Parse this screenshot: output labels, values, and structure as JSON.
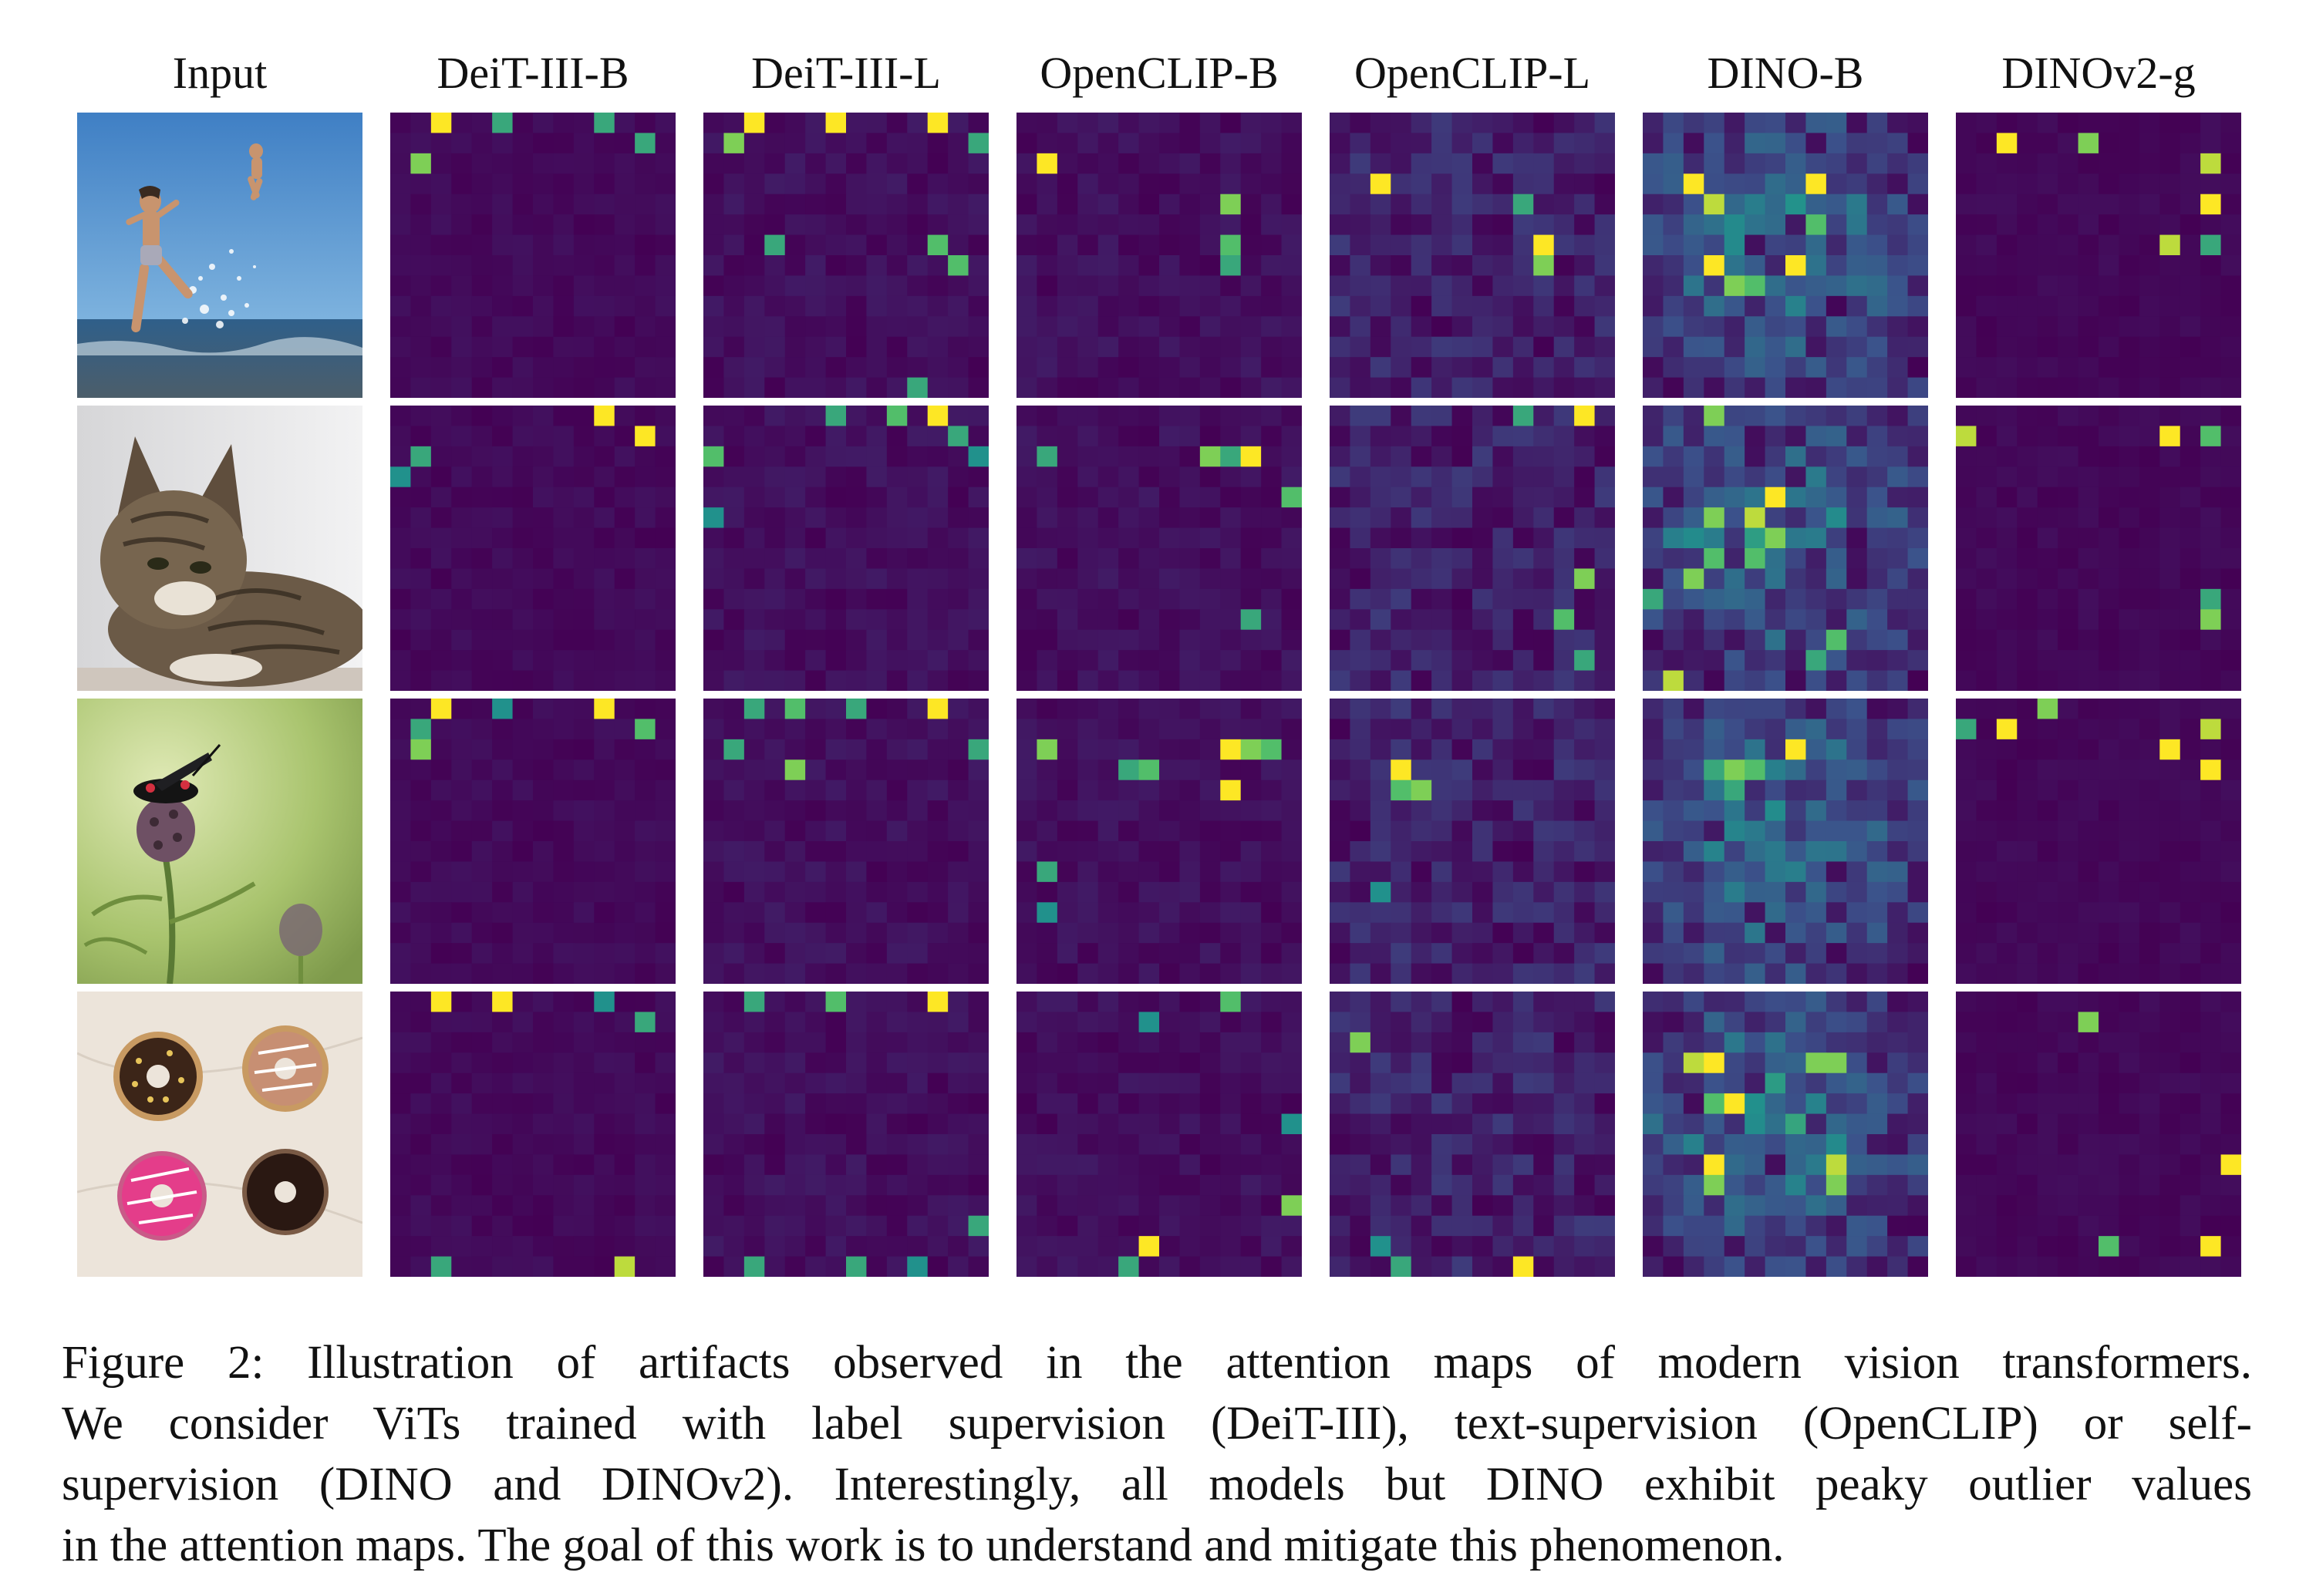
{
  "figure": {
    "columns": [
      "Input",
      "DeiT-III-B",
      "DeiT-III-L",
      "OpenCLIP-B",
      "OpenCLIP-L",
      "DINO-B",
      "DINOv2-g"
    ],
    "rows": [
      "beach-kids",
      "cat",
      "insect-on-flower",
      "donuts"
    ],
    "colormap": [
      "#440154",
      "#3b528b",
      "#21918c",
      "#5ec962",
      "#fde725"
    ]
  },
  "caption": {
    "lines": [
      "Figure 2:  Illustration of artifacts observed in the attention maps of modern vision transformers.",
      "We consider ViTs trained with label supervision (DeiT-III), text-supervision (OpenCLIP) or self-",
      "supervision (DINO and DINOv2). Interestingly, all models but DINO exhibit peaky outlier values",
      "in the attention maps. The goal of this work is to understand and mitigate this phenomenon."
    ]
  }
}
